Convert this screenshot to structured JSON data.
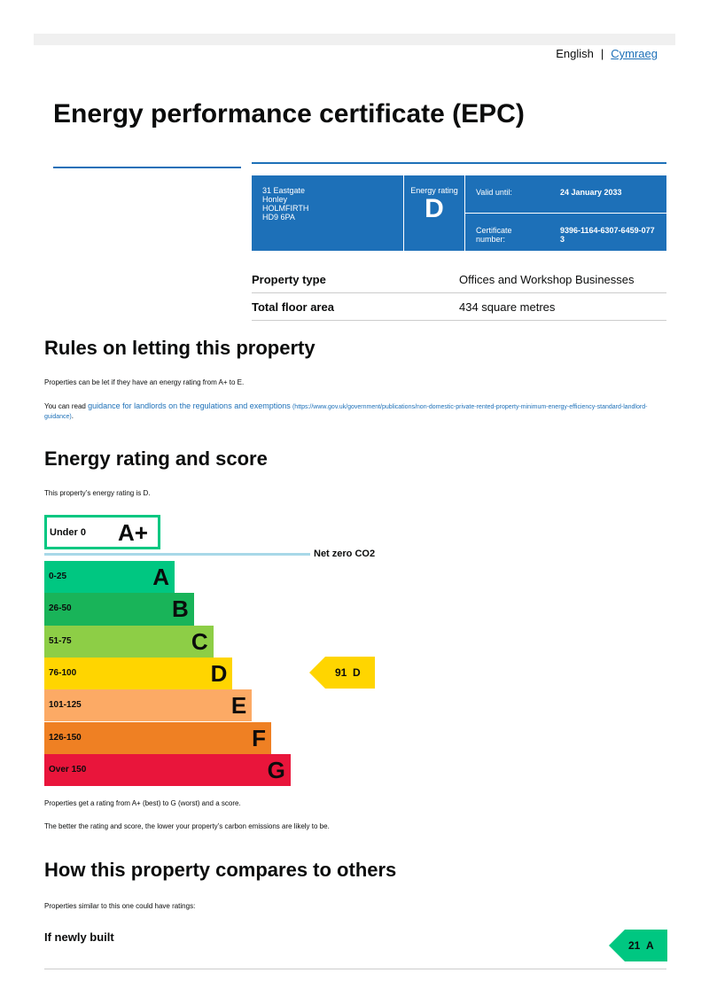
{
  "language": {
    "english": "English",
    "separator": "|",
    "welsh": "Cymraeg"
  },
  "title": "Energy performance certificate (EPC)",
  "summary": {
    "address": [
      "31 Eastgate",
      "Honley",
      "HOLMFIRTH",
      "HD9 6PA"
    ],
    "rating_label": "Energy rating",
    "rating": "D",
    "valid_until_label": "Valid until:",
    "valid_until": "24 January 2033",
    "certificate_label": "Certificate number:",
    "certificate_number": "9396-1164-6307-6459-0773"
  },
  "property": [
    {
      "label": "Property type",
      "value": "Offices and Workshop Businesses"
    },
    {
      "label": "Total floor area",
      "value": "434 square metres"
    }
  ],
  "rules": {
    "heading": "Rules on letting this property",
    "text1": "Properties can be let if they have an energy rating from A+ to E.",
    "text2_prefix": "You can read ",
    "link": "guidance for landlords on the regulations and exemptions",
    "url": "(https://www.gov.uk/government/publications/non-domestic-private-rented-property-minimum-energy-efficiency-standard-landlord-guidance)",
    "text2_suffix": "."
  },
  "rating_section": {
    "heading": "Energy rating and score",
    "intro": "This property’s energy rating is D.",
    "net_zero": "Net zero CO2",
    "bands": [
      {
        "range": "Under 0",
        "letter": "A+",
        "color": "#00c781"
      },
      {
        "range": "0-25",
        "letter": "A",
        "color": "#00c781"
      },
      {
        "range": "26-50",
        "letter": "B",
        "color": "#19b459"
      },
      {
        "range": "51-75",
        "letter": "C",
        "color": "#8dce46"
      },
      {
        "range": "76-100",
        "letter": "D",
        "color": "#ffd500"
      },
      {
        "range": "101-125",
        "letter": "E",
        "color": "#fcaa65"
      },
      {
        "range": "126-150",
        "letter": "F",
        "color": "#ef8023"
      },
      {
        "range": "Over 150",
        "letter": "G",
        "color": "#e9153b"
      }
    ],
    "current": {
      "score": "91",
      "letter": "D",
      "color": "#ffd500"
    },
    "note1": "Properties get a rating from A+ (best) to G (worst) and a score.",
    "note2": "The better the rating and score, the lower your property’s carbon emissions are likely to be."
  },
  "compare": {
    "heading": "How this property compares to others",
    "intro": "Properties similar to this one could have ratings:",
    "newly_built_label": "If newly built",
    "newly_built_score": "21",
    "newly_built_letter": "A",
    "color": "#00c781"
  }
}
